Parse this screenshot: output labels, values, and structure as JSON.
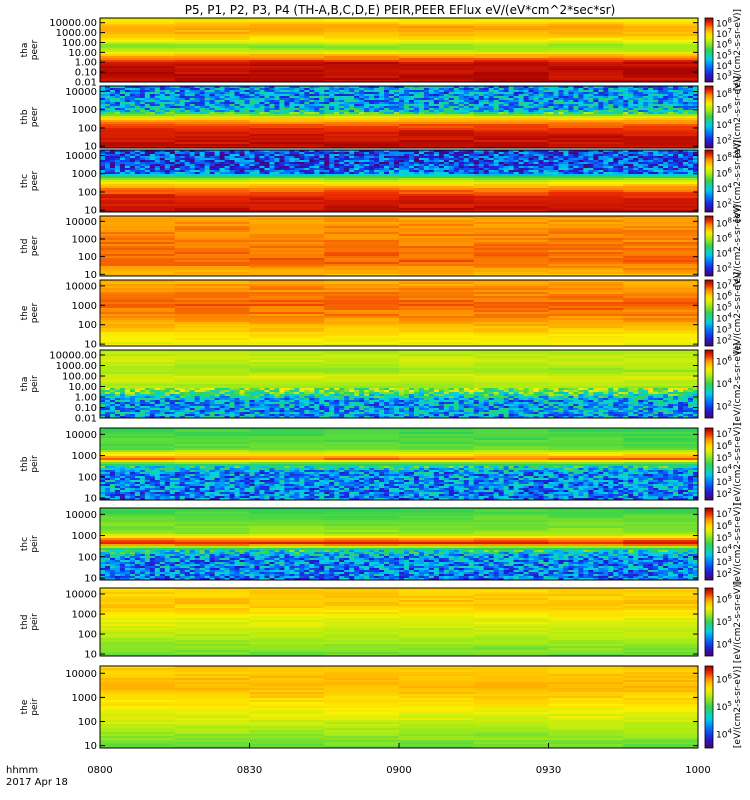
{
  "title": "P5, P1, P2, P3, P4 (TH-A,B,C,D,E) PEIR,PEER EFlux eV/(eV*cm^2*sec*sr)",
  "xaxis": {
    "label_top": "hhmm",
    "label_bottom": "2017 Apr 18",
    "ticks": [
      "0800",
      "0830",
      "0900",
      "0930",
      "1000"
    ],
    "range_minutes": [
      0,
      120
    ]
  },
  "colorbar_unit": "[eV/(cm2-s-sr-eV)]",
  "chart_data": [
    {
      "type": "heatmap",
      "probe": "tha",
      "species": "peer",
      "ylabel": [
        "tha",
        "peer"
      ],
      "yscale": "log",
      "ylim": [
        0.01,
        30000
      ],
      "yticks": [
        "10000.00",
        "1000.00",
        "100.00",
        "10.00",
        "1.00",
        "0.10",
        "0.01"
      ],
      "colorbar_ticks": [
        "10^8",
        "10^7",
        "10^6",
        "10^5",
        "10^4",
        "10^3"
      ],
      "profile": [
        [
          0.008,
          0.85
        ],
        [
          0.011,
          0.85
        ],
        [
          0.011,
          0.97
        ],
        [
          0.8,
          0.97
        ],
        [
          1.0,
          0.94
        ],
        [
          5,
          0.8
        ],
        [
          10,
          0.66
        ],
        [
          28,
          0.6
        ],
        [
          45,
          0.58
        ],
        [
          150,
          0.72
        ],
        [
          800,
          0.8
        ],
        [
          4000,
          0.82
        ],
        [
          20000,
          0.7
        ],
        [
          30000,
          0.65
        ]
      ]
    },
    {
      "type": "heatmap",
      "probe": "thb",
      "species": "peer",
      "ylabel": [
        "thb",
        "peer"
      ],
      "yscale": "log",
      "ylim": [
        8,
        20000
      ],
      "yticks": [
        "10000",
        "1000",
        "100",
        "10"
      ],
      "colorbar_ticks": [
        "10^8",
        "10^6",
        "10^4",
        "10^2"
      ],
      "profile": [
        [
          8,
          0.97
        ],
        [
          60,
          0.95
        ],
        [
          150,
          0.88
        ],
        [
          300,
          0.78
        ],
        [
          550,
          0.55
        ],
        [
          900,
          0.35
        ],
        [
          2000,
          0.3
        ],
        [
          20000,
          0.28
        ]
      ],
      "noise_above": 600
    },
    {
      "type": "heatmap",
      "probe": "thc",
      "species": "peer",
      "ylabel": [
        "thc",
        "peer"
      ],
      "yscale": "log",
      "ylim": [
        8,
        20000
      ],
      "yticks": [
        "10000",
        "1000",
        "100",
        "10"
      ],
      "colorbar_ticks": [
        "10^8",
        "10^6",
        "10^4",
        "10^2"
      ],
      "profile": [
        [
          8,
          0.97
        ],
        [
          60,
          0.93
        ],
        [
          150,
          0.85
        ],
        [
          300,
          0.72
        ],
        [
          600,
          0.55
        ],
        [
          1000,
          0.25
        ],
        [
          3000,
          0.18
        ],
        [
          20000,
          0.18
        ]
      ],
      "noise_above": 900
    },
    {
      "type": "heatmap",
      "probe": "thd",
      "species": "peer",
      "ylabel": [
        "thd",
        "peer"
      ],
      "yscale": "log",
      "ylim": [
        8,
        20000
      ],
      "yticks": [
        "10000",
        "1000",
        "100",
        "10"
      ],
      "colorbar_ticks": [
        "10^8",
        "10^6",
        "10^4",
        "10^2"
      ],
      "profile": [
        [
          8,
          0.78
        ],
        [
          15,
          0.82
        ],
        [
          50,
          0.88
        ],
        [
          500,
          0.86
        ],
        [
          5000,
          0.84
        ],
        [
          20000,
          0.82
        ]
      ]
    },
    {
      "type": "heatmap",
      "probe": "the",
      "species": "peer",
      "ylabel": [
        "the",
        "peer"
      ],
      "yscale": "log",
      "ylim": [
        8,
        20000
      ],
      "yticks": [
        "10000",
        "1000",
        "100",
        "10"
      ],
      "colorbar_ticks": [
        "10^7",
        "10^6",
        "10^5",
        "10^4",
        "10^3",
        "10^2"
      ],
      "profile": [
        [
          8,
          0.7
        ],
        [
          20,
          0.72
        ],
        [
          60,
          0.78
        ],
        [
          200,
          0.84
        ],
        [
          1000,
          0.88
        ],
        [
          8000,
          0.84
        ],
        [
          20000,
          0.8
        ]
      ]
    },
    {
      "type": "heatmap",
      "probe": "tha",
      "species": "peir",
      "ylabel": [
        "tha",
        "peir"
      ],
      "yscale": "log",
      "ylim": [
        0.01,
        30000
      ],
      "yticks": [
        "10000.00",
        "1000.00",
        "100.00",
        "10.00",
        "1.00",
        "0.10",
        "0.01"
      ],
      "colorbar_ticks": [
        "10^6",
        "10^4",
        "10^2"
      ],
      "profile": [
        [
          0.008,
          0.3
        ],
        [
          0.5,
          0.3
        ],
        [
          5,
          0.6
        ],
        [
          80,
          0.68
        ],
        [
          300,
          0.6
        ],
        [
          3000,
          0.66
        ],
        [
          30000,
          0.62
        ]
      ],
      "noise_below": 6
    },
    {
      "type": "heatmap",
      "probe": "thb",
      "species": "peir",
      "ylabel": [
        "thb",
        "peir"
      ],
      "yscale": "log",
      "ylim": [
        8,
        20000
      ],
      "yticks": [
        "10000",
        "1000",
        "100",
        "10"
      ],
      "colorbar_ticks": [
        "10^7",
        "10^6",
        "10^5",
        "10^4",
        "10^3",
        "10^2"
      ],
      "profile": [
        [
          8,
          0.25
        ],
        [
          150,
          0.28
        ],
        [
          400,
          0.5
        ],
        [
          700,
          0.88
        ],
        [
          900,
          0.8
        ],
        [
          2000,
          0.55
        ],
        [
          20000,
          0.5
        ]
      ],
      "noise_below": 350
    },
    {
      "type": "heatmap",
      "probe": "thc",
      "species": "peir",
      "ylabel": [
        "thc",
        "peir"
      ],
      "yscale": "log",
      "ylim": [
        8,
        20000
      ],
      "yticks": [
        "10000",
        "1000",
        "100",
        "10"
      ],
      "colorbar_ticks": [
        "10^7",
        "10^6",
        "10^5",
        "10^4",
        "10^3",
        "10^2"
      ],
      "profile": [
        [
          8,
          0.25
        ],
        [
          100,
          0.28
        ],
        [
          250,
          0.5
        ],
        [
          400,
          0.95
        ],
        [
          600,
          0.88
        ],
        [
          1200,
          0.6
        ],
        [
          20000,
          0.5
        ]
      ],
      "noise_below": 200
    },
    {
      "type": "heatmap",
      "probe": "thd",
      "species": "peir",
      "ylabel": [
        "thd",
        "peir"
      ],
      "yscale": "log",
      "ylim": [
        8,
        20000
      ],
      "yticks": [
        "10000",
        "1000",
        "100",
        "10"
      ],
      "colorbar_ticks": [
        "10^6",
        "10^5",
        "10^4"
      ],
      "profile": [
        [
          8,
          0.55
        ],
        [
          30,
          0.6
        ],
        [
          100,
          0.64
        ],
        [
          600,
          0.7
        ],
        [
          3000,
          0.78
        ],
        [
          20000,
          0.75
        ]
      ]
    },
    {
      "type": "heatmap",
      "probe": "the",
      "species": "peir",
      "ylabel": [
        "the",
        "peir"
      ],
      "yscale": "log",
      "ylim": [
        8,
        20000
      ],
      "yticks": [
        "10000",
        "1000",
        "100",
        "10"
      ],
      "colorbar_ticks": [
        "10^6",
        "10^5",
        "10^4"
      ],
      "profile": [
        [
          8,
          0.55
        ],
        [
          30,
          0.6
        ],
        [
          100,
          0.66
        ],
        [
          600,
          0.74
        ],
        [
          3000,
          0.8
        ],
        [
          20000,
          0.76
        ]
      ]
    }
  ]
}
